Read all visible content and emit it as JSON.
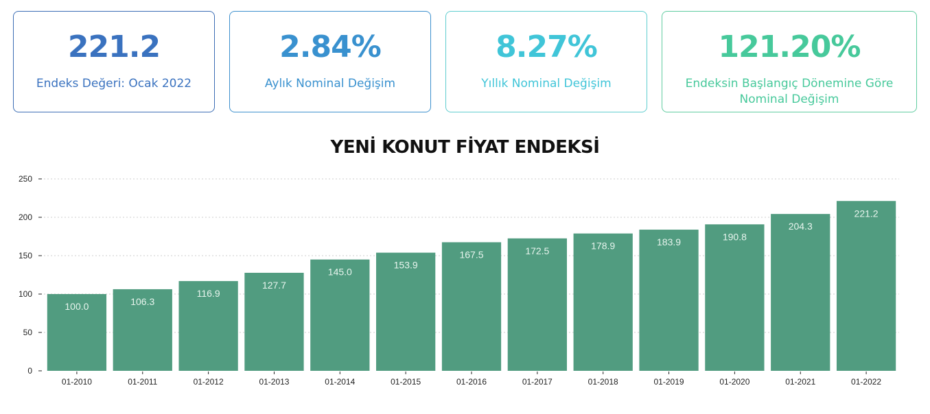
{
  "cards": [
    {
      "value": "221.2",
      "label": "Endeks Değeri: Ocak 2022",
      "color": "#3a72bf",
      "border": "#3a6cb4"
    },
    {
      "value": "2.84%",
      "label": "Aylık Nominal Değişim",
      "color": "#3991cf",
      "border": "#3b8fcd"
    },
    {
      "value": "8.27%",
      "label": "Yıllık Nominal Değişim",
      "color": "#40c5d8",
      "border": "#5ecdcf"
    },
    {
      "value": "121.20%",
      "label": "Endeksin Başlangıç Dönemine Göre Nominal Değişim",
      "color": "#47c99b",
      "border": "#5ecb9f"
    }
  ],
  "chart_data": {
    "type": "bar",
    "title": "YENİ KONUT FİYAT ENDEKSİ",
    "categories": [
      "01-2010",
      "01-2011",
      "01-2012",
      "01-2013",
      "01-2014",
      "01-2015",
      "01-2016",
      "01-2017",
      "01-2018",
      "01-2019",
      "01-2020",
      "01-2021",
      "01-2022"
    ],
    "values": [
      100.0,
      106.3,
      116.9,
      127.7,
      145.0,
      153.9,
      167.5,
      172.5,
      178.9,
      183.9,
      190.8,
      204.3,
      221.2
    ],
    "value_labels": [
      "100.0",
      "106.3",
      "116.9",
      "127.7",
      "145.0",
      "153.9",
      "167.5",
      "172.5",
      "178.9",
      "183.9",
      "190.8",
      "204.3",
      "221.2"
    ],
    "y_ticks": [
      0,
      50,
      100,
      150,
      200,
      250
    ],
    "ylim": [
      0,
      250
    ],
    "grid": true,
    "bar_color": "#519c80"
  }
}
